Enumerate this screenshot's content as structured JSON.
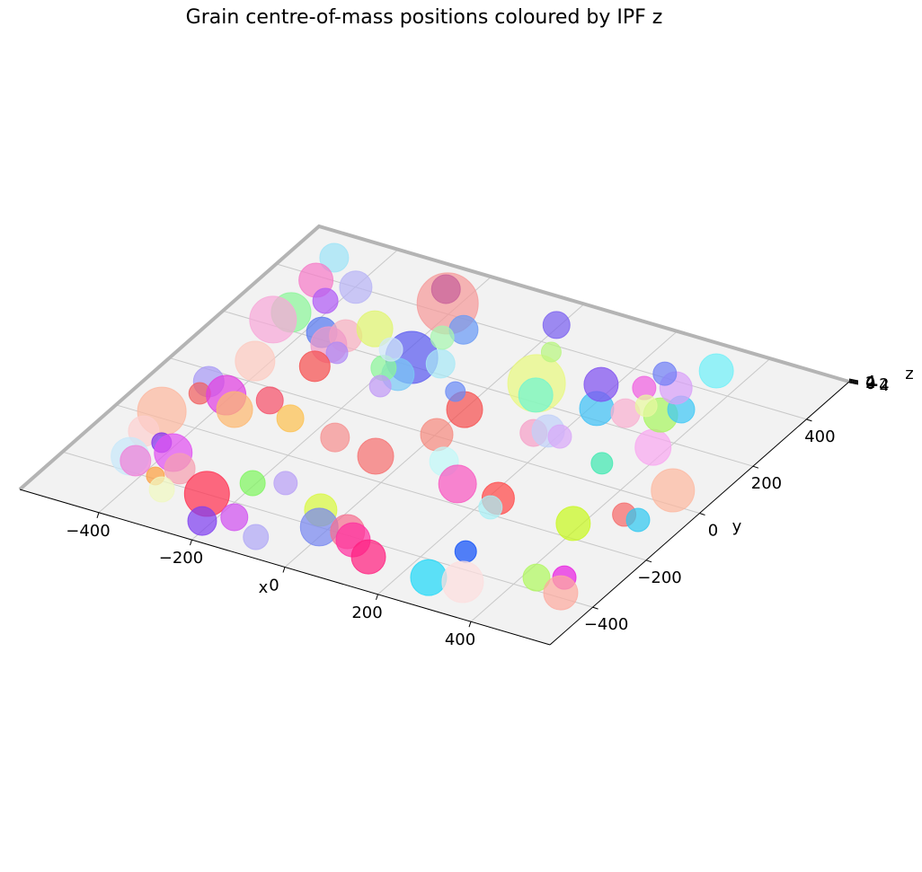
{
  "chart_data": {
    "type": "scatter3d",
    "title": "Grain centre-of-mass positions coloured by IPF z",
    "xlabel": "x",
    "ylabel": "y",
    "zlabel": "z",
    "xlim": [
      -570,
      570
    ],
    "ylim": [
      -560,
      560
    ],
    "zlim": [
      -4,
      4
    ],
    "xticks": [
      {
        "value": -400,
        "label": "−400"
      },
      {
        "value": -200,
        "label": "−200"
      },
      0,
      200,
      400
    ],
    "yticks": [
      {
        "value": -400,
        "label": "−400"
      },
      {
        "value": -200,
        "label": "−200"
      },
      0,
      200,
      400
    ],
    "zticks": [
      {
        "value": -4,
        "label": "−4"
      },
      {
        "value": -2,
        "label": "−2"
      },
      0,
      2,
      4
    ],
    "grid": true,
    "x": [
      -488,
      -399,
      -476,
      -423,
      -221,
      -250,
      -457,
      -473,
      -371,
      -326,
      -292,
      -337,
      -309,
      -180,
      -122,
      -147,
      -167,
      -171,
      -206,
      -178,
      -320,
      -426,
      -463,
      -456,
      -410,
      -370,
      -330,
      -264,
      -484,
      -477,
      -453,
      -436,
      -427,
      -390,
      -350,
      -376,
      -341,
      -260,
      -218,
      -173,
      -102,
      -206,
      -153,
      -47,
      -18,
      36,
      60,
      116,
      -157,
      -57,
      2,
      1,
      -47,
      63,
      126,
      218,
      222,
      263,
      251,
      314,
      425,
      470,
      492,
      385,
      451,
      483,
      485,
      321,
      374,
      69,
      89,
      155,
      175,
      204,
      212,
      175,
      267,
      251,
      327,
      350,
      302,
      258,
      287,
      336,
      -6,
      35,
      -228
    ],
    "y": [
      474,
      400,
      385,
      328,
      434,
      478,
      259,
      219,
      224,
      235,
      285,
      191,
      173,
      228,
      235,
      365,
      320,
      161,
      168,
      107,
      109,
      70,
      -39,
      -85,
      -66,
      -104,
      -42,
      -80,
      -178,
      -258,
      -351,
      -360,
      -278,
      -299,
      -344,
      -390,
      -427,
      -399,
      -490,
      -448,
      -491,
      -322,
      -291,
      -344,
      -400,
      -388,
      -409,
      -449,
      -99,
      -121,
      5,
      111,
      160,
      -74,
      -133,
      -141,
      -177,
      -341,
      -459,
      -441,
      -358,
      -332,
      -384,
      -151,
      -75,
      -79,
      48,
      68,
      167,
      262,
      224,
      101,
      121,
      114,
      238,
      319,
      250,
      348,
      277,
      314,
      378,
      413,
      293,
      470,
      467,
      376,
      234
    ],
    "z": [
      0,
      0,
      0,
      0,
      0,
      0,
      0,
      0,
      0,
      0,
      0,
      0,
      0,
      0,
      0,
      0,
      0,
      0,
      0,
      0,
      0,
      0,
      0,
      0,
      0,
      0,
      0,
      0,
      0,
      0,
      0,
      0,
      0,
      0,
      0,
      0,
      0,
      0,
      0,
      0,
      0,
      0,
      0,
      0,
      0,
      0,
      0,
      0,
      0,
      0,
      0,
      0,
      0,
      0,
      0,
      0,
      0,
      0,
      0,
      0,
      0,
      0,
      0,
      0,
      0,
      0,
      0,
      0,
      0,
      0,
      0,
      0,
      0,
      0,
      0,
      0,
      0,
      0,
      0,
      0,
      0,
      0,
      0,
      0,
      0,
      0,
      0
    ],
    "sizes": [
      256,
      324,
      361,
      196,
      1156,
      256,
      484,
      676,
      289,
      324,
      400,
      400,
      144,
      841,
      256,
      256,
      169,
      324,
      196,
      144,
      289,
      484,
      289,
      144,
      484,
      400,
      225,
      225,
      729,
      289,
      441,
      289,
      121,
      441,
      289,
      100,
      196,
      625,
      256,
      225,
      196,
      196,
      169,
      324,
      441,
      361,
      361,
      361,
      256,
      400,
      324,
      400,
      121,
      256,
      441,
      324,
      169,
      144,
      400,
      529,
      225,
      169,
      361,
      361,
      169,
      169,
      576,
      144,
      400,
      1024,
      361,
      225,
      324,
      169,
      361,
      361,
      256,
      169,
      361,
      225,
      324,
      169,
      144,
      361,
      225,
      121,
      169
    ],
    "colors": [
      "#9ee3f7",
      "#b8b4f5",
      "#f57cc8",
      "#b05cf5",
      "#f59a9a",
      "#c8609a",
      "#8cf59a",
      "#f7a8d8",
      "#5878f0",
      "#f7b0c0",
      "#e0f570",
      "#f09ac8",
      "#b08af5",
      "#5a5af0",
      "#a8e8f5",
      "#6a9af5",
      "#a8f5b0",
      "#7ac8f5",
      "#8cf59a",
      "#c09af5",
      "#f55050",
      "#fccac0",
      "#a89af5",
      "#f06060",
      "#e040e0",
      "#fcb870",
      "#f5506a",
      "#fcc050",
      "#fcb8a0",
      "#fcd0d0",
      "#c8e8fa",
      "#f080d8",
      "#8030f0",
      "#e050f0",
      "#f5a0b0",
      "#fca040",
      "#f0f8c0",
      "#ff3050",
      "#8040f0",
      "#d050f0",
      "#b0a8f5",
      "#80f560",
      "#b8a0f5",
      "#d8f840",
      "#7888f0",
      "#f57090",
      "#ff30a0",
      "#ff2080",
      "#f59090",
      "#f57070",
      "#f58a80",
      "#f55050",
      "#6a8af5",
      "#c0f8f8",
      "#f858c0",
      "#ff4848",
      "#a8f0f5",
      "#1050f8",
      "#20d8f8",
      "#fcdede",
      "#b0f860",
      "#e820e0",
      "#fcaaa0",
      "#c8f820",
      "#f56a6a",
      "#30c8f0",
      "#fcb8a0",
      "#40e8b0",
      "#f8a8f0",
      "#e8f880",
      "#70f5d0",
      "#f5a0c8",
      "#c0d0f8",
      "#d8a8f8",
      "#40c0f5",
      "#8050f0",
      "#f8b0d0",
      "#f060e0",
      "#a8f560",
      "#40c8f5",
      "#d8a0f8",
      "#7080f5",
      "#e8f8a0",
      "#70f0f8",
      "#7a60f0",
      "#b8f580",
      "#d0e8f8"
    ]
  }
}
